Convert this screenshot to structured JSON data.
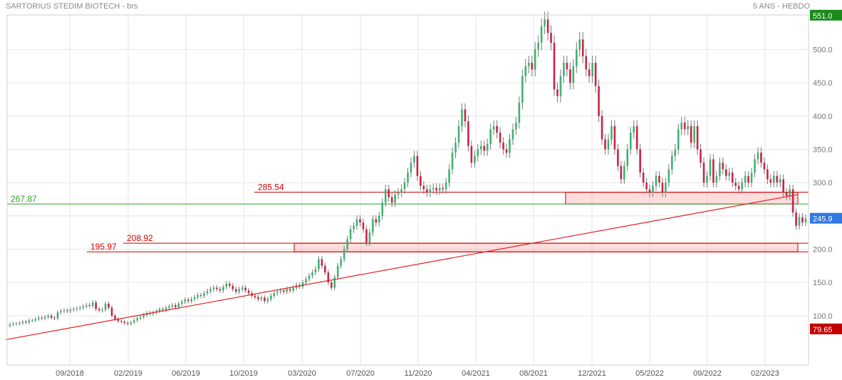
{
  "header": {
    "title": "SARTORIUS STEDIM BIOTECH - brs",
    "subtitle": "5 ANS - HEBDO"
  },
  "chart_data": {
    "type": "candlestick",
    "x_ticks": [
      "09/2018",
      "02/2019",
      "06/2019",
      "10/2019",
      "03/2020",
      "07/2020",
      "11/2020",
      "04/2021",
      "08/2021",
      "12/2021",
      "05/2022",
      "09/2022",
      "02/2023"
    ],
    "y_ticks": [
      "100.0",
      "150.0",
      "200.0",
      "250.0",
      "300.0",
      "350.0",
      "400.0",
      "450.0",
      "500.0"
    ],
    "ylim": [
      65,
      560
    ],
    "badges": {
      "high": "551.0",
      "last": "245.9",
      "low": "79.65"
    },
    "levels": [
      {
        "value": 285.54,
        "label": "285.54",
        "color": "#cc0000"
      },
      {
        "value": 267.87,
        "label": "267.87",
        "color": "#2e9e2e"
      },
      {
        "value": 208.92,
        "label": "208.92",
        "color": "#cc0000"
      },
      {
        "value": 195.97,
        "label": "195.97",
        "color": "#cc0000"
      }
    ],
    "zones": [
      {
        "x_start": "11/2021",
        "x_end": "06/2023",
        "low": 267.87,
        "high": 285.54
      },
      {
        "x_start": "02/2020",
        "x_end": "06/2023",
        "low": 195.97,
        "high": 208.92
      }
    ],
    "trendline": {
      "x_start": "07/2018",
      "y_start": 64,
      "x_end": "06/2023",
      "y_end": 282
    },
    "candles": [
      [
        85,
        87
      ],
      [
        87,
        88
      ],
      [
        88,
        88
      ],
      [
        88,
        89
      ],
      [
        89,
        91
      ],
      [
        91,
        90
      ],
      [
        90,
        93
      ],
      [
        93,
        93
      ],
      [
        93,
        95
      ],
      [
        95,
        97
      ],
      [
        97,
        96
      ],
      [
        96,
        98
      ],
      [
        98,
        100
      ],
      [
        100,
        97
      ],
      [
        97,
        96
      ],
      [
        96,
        105
      ],
      [
        105,
        107
      ],
      [
        107,
        108
      ],
      [
        108,
        107
      ],
      [
        107,
        109
      ],
      [
        109,
        110
      ],
      [
        110,
        111
      ],
      [
        111,
        112
      ],
      [
        112,
        114
      ],
      [
        114,
        116
      ],
      [
        116,
        115
      ],
      [
        115,
        120
      ],
      [
        120,
        110
      ],
      [
        110,
        108
      ],
      [
        108,
        109
      ],
      [
        109,
        118
      ],
      [
        118,
        112
      ],
      [
        112,
        100
      ],
      [
        100,
        95
      ],
      [
        95,
        92
      ],
      [
        92,
        91
      ],
      [
        91,
        89
      ],
      [
        89,
        88
      ],
      [
        88,
        90
      ],
      [
        90,
        93
      ],
      [
        93,
        96
      ],
      [
        96,
        98
      ],
      [
        98,
        101
      ],
      [
        101,
        104
      ],
      [
        104,
        103
      ],
      [
        103,
        105
      ],
      [
        105,
        107
      ],
      [
        107,
        110
      ],
      [
        110,
        109
      ],
      [
        109,
        112
      ],
      [
        112,
        114
      ],
      [
        114,
        116
      ],
      [
        116,
        113
      ],
      [
        113,
        118
      ],
      [
        118,
        121
      ],
      [
        121,
        124
      ],
      [
        124,
        122
      ],
      [
        122,
        125
      ],
      [
        125,
        128
      ],
      [
        128,
        131
      ],
      [
        131,
        130
      ],
      [
        130,
        134
      ],
      [
        134,
        137
      ],
      [
        137,
        140
      ],
      [
        140,
        142
      ],
      [
        142,
        140
      ],
      [
        140,
        138
      ],
      [
        138,
        143
      ],
      [
        143,
        148
      ],
      [
        148,
        145
      ],
      [
        145,
        140
      ],
      [
        140,
        136
      ],
      [
        136,
        140
      ],
      [
        140,
        142
      ],
      [
        142,
        138
      ],
      [
        138,
        134
      ],
      [
        134,
        130
      ],
      [
        130,
        128
      ],
      [
        128,
        125
      ],
      [
        125,
        127
      ],
      [
        127,
        122
      ],
      [
        122,
        125
      ],
      [
        125,
        130
      ],
      [
        130,
        134
      ],
      [
        134,
        136
      ],
      [
        136,
        138
      ],
      [
        138,
        136
      ],
      [
        136,
        140
      ],
      [
        140,
        138
      ],
      [
        138,
        142
      ],
      [
        142,
        146
      ],
      [
        146,
        144
      ],
      [
        144,
        150
      ],
      [
        150,
        155
      ],
      [
        155,
        160
      ],
      [
        160,
        165
      ],
      [
        165,
        170
      ],
      [
        170,
        185
      ],
      [
        185,
        175
      ],
      [
        175,
        165
      ],
      [
        165,
        150
      ],
      [
        150,
        142
      ],
      [
        142,
        158
      ],
      [
        158,
        175
      ],
      [
        175,
        185
      ],
      [
        185,
        200
      ],
      [
        200,
        215
      ],
      [
        215,
        230
      ],
      [
        230,
        235
      ],
      [
        235,
        245
      ],
      [
        245,
        240
      ],
      [
        240,
        230
      ],
      [
        230,
        210
      ],
      [
        210,
        225
      ],
      [
        225,
        245
      ],
      [
        245,
        240
      ],
      [
        240,
        250
      ],
      [
        250,
        270
      ],
      [
        270,
        290
      ],
      [
        290,
        278
      ],
      [
        278,
        270
      ],
      [
        270,
        282
      ],
      [
        282,
        285
      ],
      [
        285,
        290
      ],
      [
        290,
        300
      ],
      [
        300,
        315
      ],
      [
        315,
        330
      ],
      [
        330,
        340
      ],
      [
        340,
        310
      ],
      [
        310,
        295
      ],
      [
        295,
        290
      ],
      [
        290,
        285
      ],
      [
        285,
        290
      ],
      [
        290,
        292
      ],
      [
        292,
        288
      ],
      [
        288,
        292
      ],
      [
        292,
        290
      ],
      [
        290,
        300
      ],
      [
        300,
        320
      ],
      [
        320,
        345
      ],
      [
        345,
        360
      ],
      [
        360,
        385
      ],
      [
        385,
        410
      ],
      [
        410,
        392
      ],
      [
        392,
        355
      ],
      [
        355,
        330
      ],
      [
        330,
        340
      ],
      [
        340,
        350
      ],
      [
        350,
        355
      ],
      [
        355,
        348
      ],
      [
        348,
        358
      ],
      [
        358,
        380
      ],
      [
        380,
        385
      ],
      [
        385,
        375
      ],
      [
        375,
        360
      ],
      [
        360,
        350
      ],
      [
        350,
        345
      ],
      [
        345,
        365
      ],
      [
        365,
        380
      ],
      [
        380,
        390
      ],
      [
        390,
        420
      ],
      [
        420,
        460
      ],
      [
        460,
        475
      ],
      [
        475,
        480
      ],
      [
        480,
        470
      ],
      [
        470,
        500
      ],
      [
        500,
        510
      ],
      [
        510,
        535
      ],
      [
        535,
        545
      ],
      [
        545,
        525
      ],
      [
        525,
        510
      ],
      [
        510,
        440
      ],
      [
        440,
        430
      ],
      [
        430,
        460
      ],
      [
        460,
        480
      ],
      [
        480,
        470
      ],
      [
        470,
        450
      ],
      [
        450,
        475
      ],
      [
        475,
        500
      ],
      [
        500,
        515
      ],
      [
        515,
        490
      ],
      [
        490,
        470
      ],
      [
        470,
        460
      ],
      [
        460,
        480
      ],
      [
        480,
        445
      ],
      [
        445,
        400
      ],
      [
        400,
        365
      ],
      [
        365,
        350
      ],
      [
        350,
        365
      ],
      [
        365,
        385
      ],
      [
        385,
        350
      ],
      [
        350,
        325
      ],
      [
        325,
        305
      ],
      [
        305,
        325
      ],
      [
        325,
        350
      ],
      [
        350,
        375
      ],
      [
        375,
        385
      ],
      [
        385,
        350
      ],
      [
        350,
        315
      ],
      [
        315,
        300
      ],
      [
        300,
        290
      ],
      [
        290,
        285
      ],
      [
        285,
        295
      ],
      [
        295,
        310
      ],
      [
        310,
        300
      ],
      [
        300,
        285
      ],
      [
        285,
        300
      ],
      [
        300,
        320
      ],
      [
        320,
        340
      ],
      [
        340,
        350
      ],
      [
        350,
        380
      ],
      [
        380,
        390
      ],
      [
        390,
        380
      ],
      [
        380,
        385
      ],
      [
        385,
        360
      ],
      [
        360,
        385
      ],
      [
        385,
        350
      ],
      [
        350,
        330
      ],
      [
        330,
        300
      ],
      [
        300,
        310
      ],
      [
        310,
        335
      ],
      [
        335,
        300
      ],
      [
        300,
        310
      ],
      [
        310,
        330
      ],
      [
        330,
        320
      ],
      [
        320,
        310
      ],
      [
        310,
        315
      ],
      [
        315,
        300
      ],
      [
        300,
        295
      ],
      [
        295,
        290
      ],
      [
        290,
        300
      ],
      [
        300,
        310
      ],
      [
        310,
        300
      ],
      [
        300,
        315
      ],
      [
        315,
        335
      ],
      [
        335,
        345
      ],
      [
        345,
        330
      ],
      [
        330,
        320
      ],
      [
        320,
        305
      ],
      [
        305,
        300
      ],
      [
        300,
        310
      ],
      [
        310,
        300
      ],
      [
        300,
        305
      ],
      [
        305,
        285
      ],
      [
        285,
        280
      ],
      [
        280,
        290
      ],
      [
        290,
        255
      ],
      [
        255,
        235
      ],
      [
        235,
        248
      ],
      [
        248,
        240
      ],
      [
        240,
        246
      ]
    ]
  }
}
